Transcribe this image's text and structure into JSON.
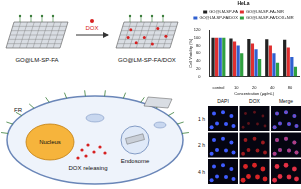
{
  "scheme": {
    "carrier": "GO@LM-SP-FA",
    "drug": "DOX",
    "loaded": "GO@LM-SP-FA/DOX"
  },
  "cell": {
    "receptor": "FR",
    "nucleus": "Nucleus",
    "release": "DOX releasing",
    "endosome": "Endosome"
  },
  "images": {
    "columns": [
      "DAPI",
      "DOX",
      "Merge"
    ],
    "rows": [
      "1 h",
      "2 h",
      "4 h"
    ]
  },
  "chart_data": {
    "type": "bar",
    "title": "HeLa",
    "x_label": "Concentration (μg/mL)",
    "y_label": "Cell Viability (%)",
    "categories": [
      "control",
      "10",
      "20",
      "40",
      "80"
    ],
    "series": [
      {
        "name": "GO@LM-SP-FA",
        "color": "#222222",
        "values": [
          100,
          98,
          97,
          96,
          95
        ]
      },
      {
        "name": "GO@LM-SP-FA+NIR",
        "color": "#e03030",
        "values": [
          100,
          90,
          85,
          80,
          75
        ]
      },
      {
        "name": "GO@LM-SP-FA/DOX",
        "color": "#3060d0",
        "values": [
          100,
          80,
          70,
          60,
          50
        ]
      },
      {
        "name": "GO@LM-SP-FA/DOX+NIR",
        "color": "#30a040",
        "values": [
          100,
          60,
          45,
          35,
          25
        ]
      }
    ],
    "ylim": [
      0,
      120
    ],
    "yticks": [
      0,
      20,
      40,
      60,
      80,
      100,
      120
    ],
    "grid": false,
    "legend": "top"
  }
}
